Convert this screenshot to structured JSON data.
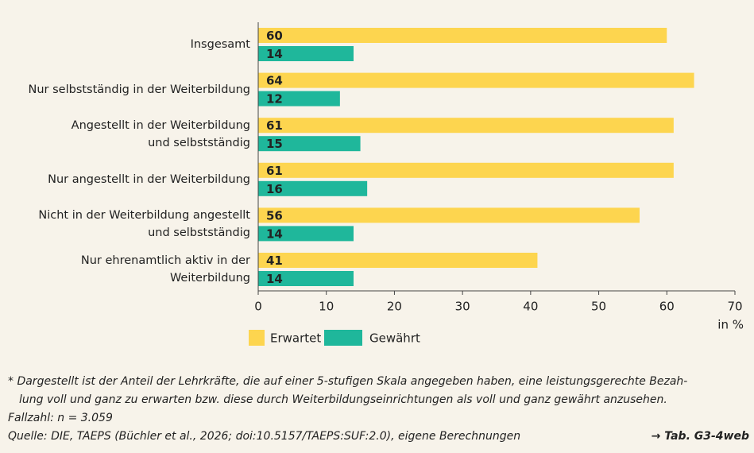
{
  "chart_data": {
    "type": "barh",
    "categories": [
      "Insgesamt",
      "Nur selbstständig in der Weiterbildung",
      "Angestellt in der Weiterbildung\nund selbstständig",
      "Nur angestellt in der Weiterbildung",
      "Nicht in der Weiterbildung angestellt\nund selbstständig",
      "Nur ehrenamtlich aktiv in der\nWeiterbildung"
    ],
    "series": [
      {
        "name": "Erwartet",
        "color": "#fdd54f",
        "values": [
          60,
          64,
          61,
          61,
          56,
          41
        ]
      },
      {
        "name": "Gewährt",
        "color": "#1fb79b",
        "values": [
          14,
          12,
          15,
          16,
          14,
          14
        ]
      }
    ],
    "xlim": [
      0,
      70
    ],
    "xticks": [
      0,
      10,
      20,
      30,
      40,
      50,
      60,
      70
    ],
    "xlabel": "in %"
  },
  "notes": {
    "footnote": [
      "*  Dargestellt ist der Anteil der Lehrkräfte, die auf einer 5-stufigen Skala angegeben haben, eine leistungsgerechte Bezah-",
      "lung voll und ganz zu erwarten bzw. diese durch Weiterbildungseinrichtungen als voll und ganz gewährt anzusehen."
    ],
    "sample": "Fallzahl: n = 3.059",
    "source": "Quelle: DIE, TAEPS (Büchler et al., 2026; doi:10.5157/TAEPS:SUF:2.0), eigene Berechnungen",
    "reference": "→ Tab. G3-4web"
  }
}
